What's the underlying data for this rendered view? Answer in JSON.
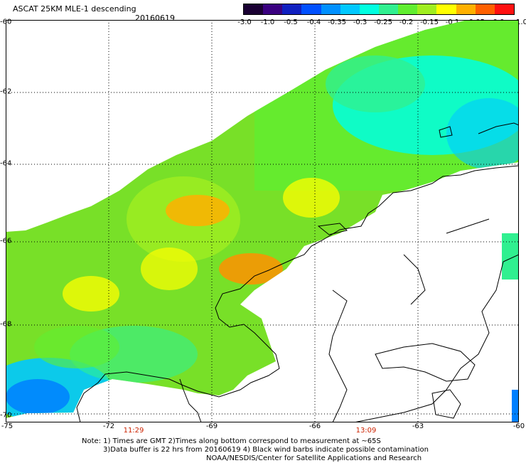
{
  "header": {
    "title": "ASCAT 25KM MLE-1 descending",
    "date": "20160619"
  },
  "colorbar": {
    "labels": [
      "-3.0",
      "-1.0",
      "-0.5",
      "-0.4",
      "-0.35",
      "-0.3",
      "-0.25",
      "-0.2",
      "-0.15",
      "-0.1",
      "-0.05",
      "0.0",
      "1.0"
    ],
    "colors": [
      "#1a0033",
      "#3a0080",
      "#1020c0",
      "#0050ff",
      "#0090ff",
      "#00c8ff",
      "#00ffe0",
      "#30f090",
      "#60ee30",
      "#a0ee20",
      "#ffff00",
      "#ffb000",
      "#ff6000",
      "#ff1010"
    ]
  },
  "axes": {
    "lat_labels": [
      "-60",
      "-62",
      "-64",
      "-66",
      "-68",
      "-70"
    ],
    "lon_labels": [
      "-75",
      "-72",
      "-69",
      "-66",
      "-63",
      "-60"
    ]
  },
  "times": [
    "11:29",
    "13:09"
  ],
  "notes": {
    "line1": "Note: 1) Times are GMT 2)Times along bottom correspond to measurement at ~65S",
    "line2": "3)Data buffer is 22 hrs from 20160619 4) Black wind barbs indicate possible contamination",
    "line3": "NOAA/NESDIS/Center for Satellite Applications and Research"
  },
  "colors": {
    "grid": "#000000",
    "coast": "#000000",
    "time_label": "#cc2200"
  }
}
